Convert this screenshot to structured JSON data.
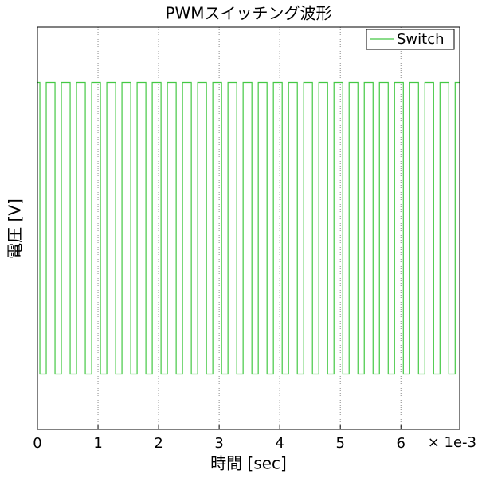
{
  "chart_data": {
    "type": "line",
    "title": "PWMスイッチング波形",
    "xlabel": "時間 [sec]",
    "ylabel": "電圧 [V]",
    "x_offset_label": "× 1e-3",
    "xlim": [
      0,
      0.00697
    ],
    "ylim": [
      -1.38,
      1.38
    ],
    "xticks": [
      {
        "value": 0,
        "label": "0"
      },
      {
        "value": 0.001,
        "label": "1"
      },
      {
        "value": 0.002,
        "label": "2"
      },
      {
        "value": 0.003,
        "label": "3"
      },
      {
        "value": 0.004,
        "label": "4"
      },
      {
        "value": 0.005,
        "label": "5"
      },
      {
        "value": 0.006,
        "label": "6"
      }
    ],
    "grid_x": true,
    "legend_position": "upper-right",
    "x": [
      0,
      4e-05,
      4e-05,
      0.000145,
      0.000145,
      0.00029,
      0.00029,
      0.000395,
      0.000395,
      0.00054,
      0.00054,
      0.000645,
      0.000645,
      0.00079,
      0.00079,
      0.000895,
      0.000895,
      0.00104,
      0.00104,
      0.001145,
      0.001145,
      0.00129,
      0.00129,
      0.001395,
      0.001395,
      0.00154,
      0.00154,
      0.001645,
      0.001645,
      0.00179,
      0.00179,
      0.001895,
      0.001895,
      0.00204,
      0.00204,
      0.002145,
      0.002145,
      0.00229,
      0.00229,
      0.002395,
      0.002395,
      0.00254,
      0.00254,
      0.002645,
      0.002645,
      0.00279,
      0.00279,
      0.002895,
      0.002895,
      0.00304,
      0.00304,
      0.003145,
      0.003145,
      0.00329,
      0.00329,
      0.003395,
      0.003395,
      0.00354,
      0.00354,
      0.003645,
      0.003645,
      0.00379,
      0.00379,
      0.003895,
      0.003895,
      0.00404,
      0.00404,
      0.004145,
      0.004145,
      0.00429,
      0.00429,
      0.004395,
      0.004395,
      0.00454,
      0.00454,
      0.004645,
      0.004645,
      0.00479,
      0.00479,
      0.004895,
      0.004895,
      0.00504,
      0.00504,
      0.005145,
      0.005145,
      0.00529,
      0.00529,
      0.005395,
      0.005395,
      0.00554,
      0.00554,
      0.005645,
      0.005645,
      0.00579,
      0.00579,
      0.005895,
      0.005895,
      0.00604,
      0.00604,
      0.006145,
      0.006145,
      0.00629,
      0.00629,
      0.006395,
      0.006395,
      0.00654,
      0.00654,
      0.006645,
      0.006645,
      0.00679,
      0.00679,
      0.006895,
      0.006895,
      0.00697
    ],
    "series": [
      {
        "name": "Switch",
        "color": "#44c844",
        "values": [
          1,
          1,
          -1,
          -1,
          1,
          1,
          -1,
          -1,
          1,
          1,
          -1,
          -1,
          1,
          1,
          -1,
          -1,
          1,
          1,
          -1,
          -1,
          1,
          1,
          -1,
          -1,
          1,
          1,
          -1,
          -1,
          1,
          1,
          -1,
          -1,
          1,
          1,
          -1,
          -1,
          1,
          1,
          -1,
          -1,
          1,
          1,
          -1,
          -1,
          1,
          1,
          -1,
          -1,
          1,
          1,
          -1,
          -1,
          1,
          1,
          -1,
          -1,
          1,
          1,
          -1,
          -1,
          1,
          1,
          -1,
          -1,
          1,
          1,
          -1,
          -1,
          1,
          1,
          -1,
          -1,
          1,
          1,
          -1,
          -1,
          1,
          1,
          -1,
          -1,
          1,
          1,
          -1,
          -1,
          1,
          1,
          -1,
          -1,
          1,
          1,
          -1,
          -1,
          1,
          1,
          -1,
          -1,
          1,
          1,
          -1,
          -1,
          1,
          1,
          -1,
          -1,
          1,
          1,
          -1,
          -1,
          1,
          1,
          -1,
          -1,
          1,
          1
        ]
      }
    ]
  }
}
